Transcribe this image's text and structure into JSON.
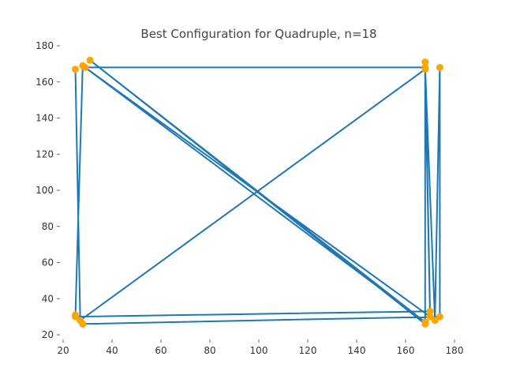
{
  "chart_data": {
    "type": "line",
    "title": "Best Configuration for Quadruple, n=18",
    "xlabel": "",
    "ylabel": "",
    "xlim": [
      20,
      180
    ],
    "ylim": [
      20,
      180
    ],
    "x_ticks": [
      20,
      40,
      60,
      80,
      100,
      120,
      140,
      160,
      180
    ],
    "y_ticks": [
      20,
      40,
      60,
      80,
      100,
      120,
      140,
      160,
      180
    ],
    "grid": false,
    "colors": {
      "line": "#1f77b4",
      "marker": "#ffa500"
    },
    "series": [
      {
        "points": [
          {
            "x": 25,
            "y": 167
          },
          {
            "x": 27,
            "y": 28
          },
          {
            "x": 168,
            "y": 167
          },
          {
            "x": 170,
            "y": 30
          },
          {
            "x": 28,
            "y": 169
          },
          {
            "x": 25,
            "y": 30
          },
          {
            "x": 170,
            "y": 33
          },
          {
            "x": 168,
            "y": 171
          },
          {
            "x": 168,
            "y": 26
          },
          {
            "x": 31,
            "y": 172
          },
          {
            "x": 168,
            "y": 27
          },
          {
            "x": 29,
            "y": 168
          },
          {
            "x": 168,
            "y": 168
          },
          {
            "x": 172,
            "y": 28
          },
          {
            "x": 174,
            "y": 168
          },
          {
            "x": 174,
            "y": 30
          },
          {
            "x": 28,
            "y": 26
          },
          {
            "x": 25,
            "y": 31
          }
        ]
      }
    ]
  }
}
